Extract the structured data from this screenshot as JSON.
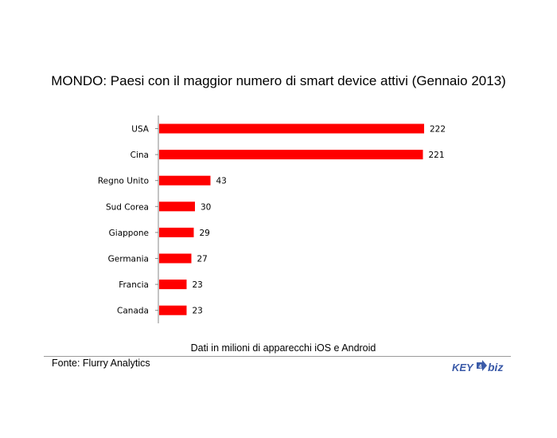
{
  "chart_data": {
    "type": "bar",
    "orientation": "horizontal",
    "title": "MONDO: Paesi con il maggior numero di smart device attivi (Gennaio 2013)",
    "categories": [
      "USA",
      "Cina",
      "Regno Unito",
      "Sud Corea",
      "Giappone",
      "Germania",
      "Francia",
      "Canada"
    ],
    "values": [
      222,
      221,
      43,
      30,
      29,
      27,
      23,
      23
    ],
    "xlabel": "Dati in milioni di apparecchi iOS e Android",
    "bar_color": "#ff0000",
    "data_labels": true,
    "grid": false
  },
  "footer": {
    "source": "Fonte: Flurry Analytics",
    "logo_text_left": "KEY",
    "logo_text_right": "biz",
    "logo_color": "#3a5aa8"
  }
}
